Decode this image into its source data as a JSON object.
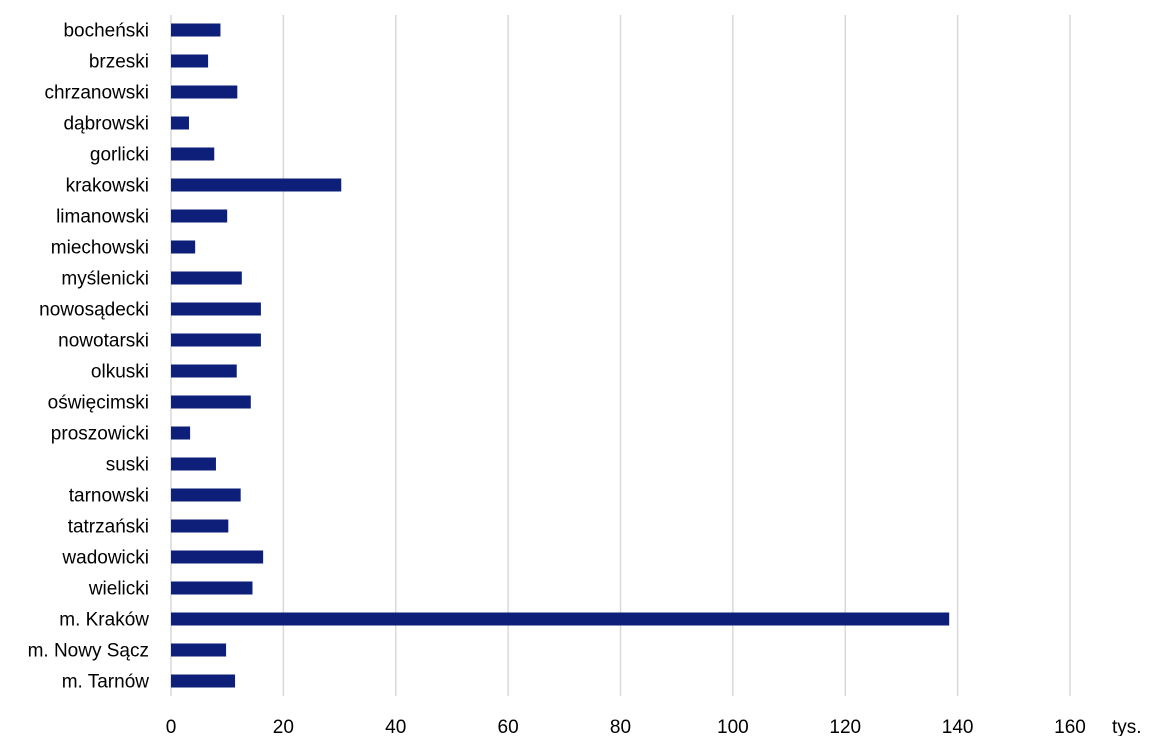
{
  "chart_data": {
    "type": "bar",
    "orientation": "horizontal",
    "categories": [
      "bocheński",
      "brzeski",
      "chrzanowski",
      "dąbrowski",
      "gorlicki",
      "krakowski",
      "limanowski",
      "miechowski",
      "myślenicki",
      "nowosądecki",
      "nowotarski",
      "olkuski",
      "oświęcimski",
      "proszowicki",
      "suski",
      "tarnowski",
      "tatrzański",
      "wadowicki",
      "wielicki",
      "m. Kraków",
      "m. Nowy Sącz",
      "m. Tarnów"
    ],
    "values": [
      8.8,
      6.6,
      11.8,
      3.2,
      7.7,
      30.3,
      10.0,
      4.3,
      12.6,
      16.0,
      16.0,
      11.7,
      14.2,
      3.4,
      8.0,
      12.4,
      10.2,
      16.4,
      14.5,
      138.5,
      9.8,
      11.4
    ],
    "xticks": [
      0,
      20,
      40,
      60,
      80,
      100,
      120,
      140,
      160
    ],
    "xlim": [
      0,
      160
    ],
    "unit": "tys.",
    "grid": "vertical",
    "bar_color": "#0d1f78",
    "grid_color": "#d9d9d9"
  }
}
